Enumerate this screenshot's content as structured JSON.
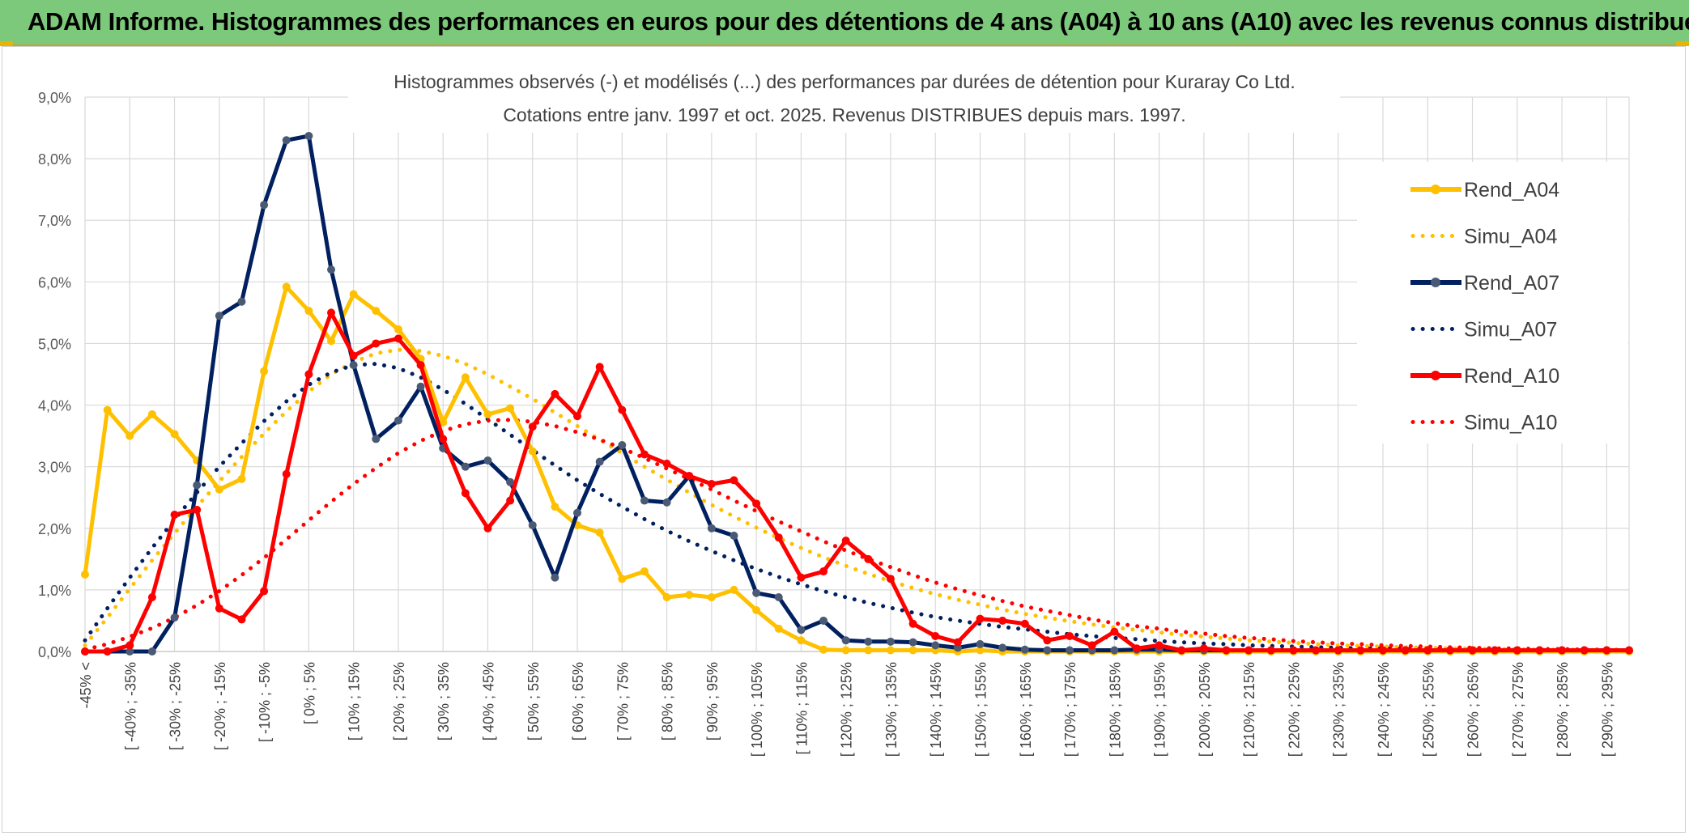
{
  "header": {
    "title": "ADAM Informe. Histogrammes des performances en euros pour des détentions de 4 ans (A04) à 10 ans (A10) avec les revenus connus distribués"
  },
  "chart_data": {
    "type": "line",
    "title": "Histogrammes observés (-) et modélisés (...) des performances par durées de détention pour Kuraray Co Ltd.",
    "subtitle": "Cotations entre janv. 1997 et oct. 2025. Revenus DISTRIBUES depuis mars. 1997.",
    "xlabel": "",
    "ylabel": "",
    "ylim": [
      0,
      9
    ],
    "y_ticks": [
      "0,0%",
      "1,0%",
      "2,0%",
      "3,0%",
      "4,0%",
      "5,0%",
      "6,0%",
      "7,0%",
      "8,0%",
      "9,0%"
    ],
    "x_tick_labels": [
      "-45% <",
      "[ -40% ; -35%",
      "[ -30% ; -25%",
      "[ -20% ; -15%",
      "[ -10% ; -5%",
      "[ 0% ; 5%",
      "[ 10% ; 15%",
      "[ 20% ; 25%",
      "[ 30% ; 35%",
      "[ 40% ; 45%",
      "[ 50% ; 55%",
      "[ 60% ; 65%",
      "[ 70% ; 75%",
      "[ 80% ; 85%",
      "[ 90% ; 95%",
      "[ 100% ; 105%",
      "[ 110% ; 115%",
      "[ 120% ; 125%",
      "[ 130% ; 135%",
      "[ 140% ; 145%",
      "[ 150% ; 155%",
      "[ 160% ; 165%",
      "[ 170% ; 175%",
      "[ 180% ; 185%",
      "[ 190% ; 195%",
      "[ 200% ; 205%",
      "[ 210% ; 215%",
      "[ 220% ; 225%",
      "[ 230% ; 235%",
      "[ 240% ; 245%",
      "[ 250% ; 255%",
      "[ 260% ; 265%",
      "[ 270% ; 275%",
      "[ 280% ; 285%",
      "[ 290% ; 295%"
    ],
    "legend_position": "right",
    "grid": true,
    "series": [
      {
        "name": "Rend_A04",
        "style": "solid",
        "color": "#ffc000",
        "values": [
          1.25,
          3.92,
          3.5,
          3.85,
          3.53,
          3.1,
          2.63,
          2.8,
          4.55,
          5.92,
          5.53,
          5.04,
          5.8,
          5.53,
          5.23,
          4.75,
          3.72,
          4.45,
          3.85,
          3.95,
          3.25,
          2.35,
          2.05,
          1.93,
          1.18,
          1.3,
          0.88,
          0.92,
          0.88,
          1.0,
          0.67,
          0.37,
          0.18,
          0.03,
          0.02,
          0.02,
          0.02,
          0.02,
          0.02,
          0.0,
          0.02,
          0.0,
          0.0,
          0.0,
          0.0,
          0.0,
          0.0,
          0.0,
          0.0,
          0.0,
          0.0,
          0.0,
          0.0,
          0.0,
          0.0,
          0.0,
          0.0,
          0.0,
          0.0,
          0.0,
          0.0,
          0.0,
          0.0,
          0.0,
          0.0,
          0.0,
          0.0,
          0.0,
          0.0,
          0.0
        ]
      },
      {
        "name": "Simu_A04",
        "style": "dotted",
        "color": "#ffc000",
        "values": [
          0.1,
          0.55,
          1.02,
          1.48,
          1.92,
          2.35,
          2.76,
          3.16,
          3.54,
          3.9,
          4.22,
          4.5,
          4.7,
          4.84,
          4.9,
          4.88,
          4.8,
          4.67,
          4.5,
          4.3,
          4.1,
          3.88,
          3.66,
          3.44,
          3.22,
          3.0,
          2.79,
          2.58,
          2.38,
          2.19,
          2.01,
          1.84,
          1.68,
          1.53,
          1.39,
          1.26,
          1.14,
          1.03,
          0.93,
          0.84,
          0.76,
          0.68,
          0.61,
          0.55,
          0.49,
          0.44,
          0.39,
          0.35,
          0.31,
          0.27,
          0.24,
          0.21,
          0.18,
          0.16,
          0.14,
          0.12,
          0.1,
          0.09,
          0.08,
          0.07,
          0.06,
          0.05,
          0.05,
          0.04,
          0.04,
          0.03,
          0.03,
          0.03,
          0.02,
          0.02
        ]
      },
      {
        "name": "Rend_A07",
        "style": "solid",
        "color": "#002060",
        "values": [
          0.0,
          0.0,
          0.0,
          0.0,
          0.55,
          2.7,
          5.45,
          5.68,
          7.25,
          8.3,
          8.37,
          6.2,
          4.65,
          3.45,
          3.75,
          4.3,
          3.3,
          3.0,
          3.1,
          2.75,
          2.05,
          1.2,
          2.25,
          3.08,
          3.35,
          2.45,
          2.42,
          2.85,
          2.0,
          1.88,
          0.95,
          0.88,
          0.35,
          0.5,
          0.18,
          0.16,
          0.16,
          0.15,
          0.1,
          0.06,
          0.12,
          0.06,
          0.03,
          0.02,
          0.02,
          0.02,
          0.02,
          0.03,
          0.03,
          0.02,
          0.02,
          0.02,
          0.02,
          0.02,
          0.02,
          0.02,
          0.02,
          0.02,
          0.02,
          0.02,
          0.02,
          0.02,
          0.02,
          0.02,
          0.02,
          0.02,
          0.02,
          0.02,
          0.02,
          0.02
        ]
      },
      {
        "name": "Simu_A07",
        "style": "dotted",
        "color": "#002060",
        "values": [
          0.18,
          0.7,
          1.2,
          1.68,
          2.14,
          2.58,
          3.0,
          3.38,
          3.74,
          4.06,
          4.33,
          4.53,
          4.65,
          4.67,
          4.6,
          4.45,
          4.25,
          4.02,
          3.77,
          3.52,
          3.27,
          3.02,
          2.78,
          2.56,
          2.35,
          2.15,
          1.96,
          1.79,
          1.63,
          1.48,
          1.34,
          1.21,
          1.09,
          0.98,
          0.88,
          0.79,
          0.71,
          0.63,
          0.56,
          0.5,
          0.45,
          0.4,
          0.36,
          0.32,
          0.28,
          0.25,
          0.22,
          0.2,
          0.17,
          0.15,
          0.13,
          0.12,
          0.1,
          0.09,
          0.08,
          0.07,
          0.06,
          0.05,
          0.05,
          0.04,
          0.04,
          0.03,
          0.03,
          0.03,
          0.02,
          0.02,
          0.02,
          0.02,
          0.01,
          0.01
        ]
      },
      {
        "name": "Rend_A10",
        "style": "solid",
        "color": "#ff0000",
        "values": [
          0.0,
          0.0,
          0.1,
          0.88,
          2.22,
          2.3,
          0.7,
          0.52,
          0.98,
          2.88,
          4.5,
          5.5,
          4.8,
          5.0,
          5.08,
          4.65,
          3.45,
          2.57,
          2.0,
          2.45,
          3.65,
          4.18,
          3.82,
          4.62,
          3.92,
          3.2,
          3.05,
          2.85,
          2.72,
          2.78,
          2.4,
          1.85,
          1.2,
          1.3,
          1.8,
          1.5,
          1.18,
          0.45,
          0.25,
          0.15,
          0.53,
          0.5,
          0.45,
          0.18,
          0.25,
          0.1,
          0.32,
          0.05,
          0.1,
          0.02,
          0.05,
          0.02,
          0.02,
          0.02,
          0.02,
          0.02,
          0.02,
          0.02,
          0.02,
          0.02,
          0.02,
          0.02,
          0.02,
          0.02,
          0.02,
          0.02,
          0.02,
          0.02,
          0.02,
          0.02
        ]
      },
      {
        "name": "Simu_A10",
        "style": "dotted",
        "color": "#ff0000",
        "values": [
          0.03,
          0.12,
          0.24,
          0.38,
          0.55,
          0.75,
          0.98,
          1.24,
          1.52,
          1.82,
          2.13,
          2.43,
          2.72,
          2.98,
          3.22,
          3.42,
          3.58,
          3.69,
          3.75,
          3.76,
          3.73,
          3.66,
          3.56,
          3.44,
          3.3,
          3.14,
          2.97,
          2.8,
          2.63,
          2.45,
          2.28,
          2.11,
          1.95,
          1.79,
          1.64,
          1.5,
          1.37,
          1.24,
          1.12,
          1.01,
          0.91,
          0.82,
          0.73,
          0.66,
          0.59,
          0.52,
          0.46,
          0.41,
          0.37,
          0.32,
          0.29,
          0.25,
          0.22,
          0.2,
          0.17,
          0.15,
          0.13,
          0.12,
          0.1,
          0.09,
          0.08,
          0.07,
          0.06,
          0.05,
          0.05,
          0.04,
          0.04,
          0.03,
          0.03,
          0.02
        ]
      }
    ]
  }
}
